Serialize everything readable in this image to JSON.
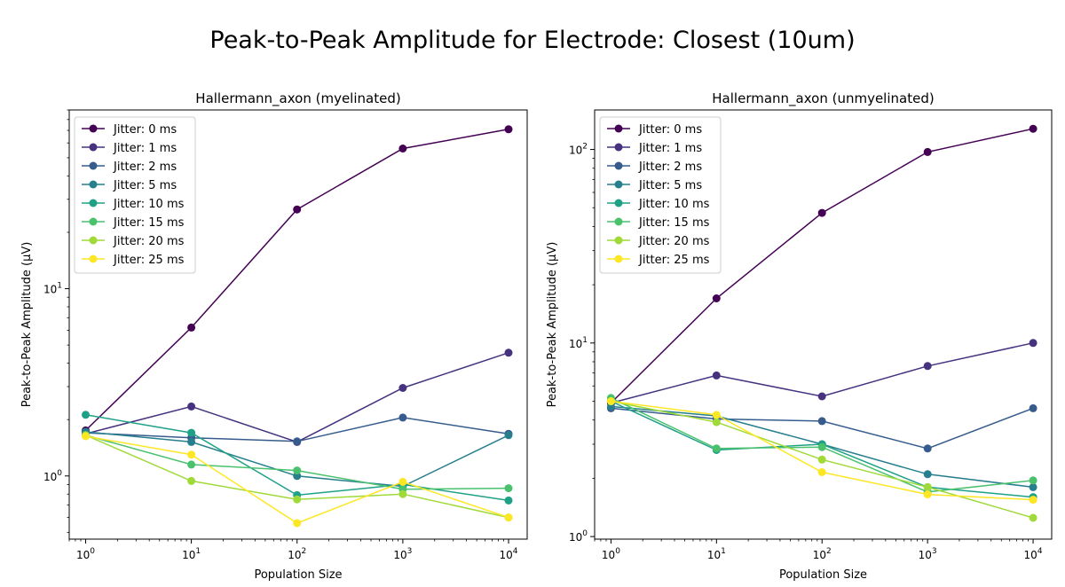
{
  "figure": {
    "suptitle": "Peak-to-Peak Amplitude for Electrode: Closest (10um)"
  },
  "chart_data": [
    {
      "type": "line",
      "title": "Hallermann_axon (myelinated)",
      "xlabel": "Population Size",
      "ylabel": "Peak-to-Peak Amplitude (μV)",
      "xscale": "log",
      "yscale": "log",
      "x": [
        1,
        10,
        100,
        1000,
        10000
      ],
      "xlim": [
        0.7,
        15000
      ],
      "ylim": [
        0.46,
        90
      ],
      "x_ticks": [
        {
          "value": 1,
          "base": "10",
          "exp": "0"
        },
        {
          "value": 10,
          "base": "10",
          "exp": "1"
        },
        {
          "value": 100,
          "base": "10",
          "exp": "2"
        },
        {
          "value": 1000,
          "base": "10",
          "exp": "3"
        },
        {
          "value": 10000,
          "base": "10",
          "exp": "4"
        }
      ],
      "y_ticks": [
        {
          "value": 1,
          "base": "10",
          "exp": "0"
        },
        {
          "value": 10,
          "base": "10",
          "exp": "1"
        }
      ],
      "legend_position": "upper left",
      "grid": false,
      "series": [
        {
          "name": "Jitter: 0 ms",
          "color": "#440154",
          "values": [
            1.75,
            6.2,
            26.5,
            56,
            71
          ]
        },
        {
          "name": "Jitter: 1 ms",
          "color": "#46327e",
          "values": [
            1.68,
            2.35,
            1.52,
            2.95,
            4.55
          ]
        },
        {
          "name": "Jitter: 2 ms",
          "color": "#365c8d",
          "values": [
            1.7,
            1.6,
            1.53,
            2.05,
            1.68
          ]
        },
        {
          "name": "Jitter: 5 ms",
          "color": "#277f8e",
          "values": [
            1.72,
            1.52,
            1.0,
            0.88,
            1.65
          ]
        },
        {
          "name": "Jitter: 10 ms",
          "color": "#1fa187",
          "values": [
            2.12,
            1.7,
            0.79,
            0.9,
            0.74
          ]
        },
        {
          "name": "Jitter: 15 ms",
          "color": "#4ac16d",
          "values": [
            1.65,
            1.15,
            1.07,
            0.85,
            0.86
          ]
        },
        {
          "name": "Jitter: 20 ms",
          "color": "#a0da39",
          "values": [
            1.65,
            0.94,
            0.75,
            0.8,
            0.6
          ]
        },
        {
          "name": "Jitter: 25 ms",
          "color": "#fde725",
          "values": [
            1.63,
            1.3,
            0.56,
            0.93,
            0.6
          ]
        }
      ]
    },
    {
      "type": "line",
      "title": "Hallermann_axon (unmyelinated)",
      "xlabel": "Population Size",
      "ylabel": "Peak-to-Peak Amplitude (μV)",
      "xscale": "log",
      "yscale": "log",
      "x": [
        1,
        10,
        100,
        1000,
        10000
      ],
      "xlim": [
        0.7,
        15000
      ],
      "ylim": [
        0.97,
        160
      ],
      "x_ticks": [
        {
          "value": 1,
          "base": "10",
          "exp": "0"
        },
        {
          "value": 10,
          "base": "10",
          "exp": "1"
        },
        {
          "value": 100,
          "base": "10",
          "exp": "2"
        },
        {
          "value": 1000,
          "base": "10",
          "exp": "3"
        },
        {
          "value": 10000,
          "base": "10",
          "exp": "4"
        }
      ],
      "y_ticks": [
        {
          "value": 1,
          "base": "10",
          "exp": "0"
        },
        {
          "value": 10,
          "base": "10",
          "exp": "1"
        },
        {
          "value": 100,
          "base": "10",
          "exp": "2"
        }
      ],
      "legend_position": "upper left",
      "grid": false,
      "series": [
        {
          "name": "Jitter: 0 ms",
          "color": "#440154",
          "values": [
            4.9,
            17,
            47,
            97,
            128
          ]
        },
        {
          "name": "Jitter: 1 ms",
          "color": "#46327e",
          "values": [
            4.9,
            6.8,
            5.3,
            7.6,
            10
          ]
        },
        {
          "name": "Jitter: 2 ms",
          "color": "#365c8d",
          "values": [
            4.6,
            4.05,
            3.95,
            2.85,
            4.6
          ]
        },
        {
          "name": "Jitter: 5 ms",
          "color": "#277f8e",
          "values": [
            4.7,
            4.2,
            3.0,
            2.1,
            1.8
          ]
        },
        {
          "name": "Jitter: 10 ms",
          "color": "#1fa187",
          "values": [
            5.0,
            2.8,
            3.0,
            1.8,
            1.6
          ]
        },
        {
          "name": "Jitter: 15 ms",
          "color": "#4ac16d",
          "values": [
            5.2,
            2.85,
            2.9,
            1.7,
            1.95
          ]
        },
        {
          "name": "Jitter: 20 ms",
          "color": "#a0da39",
          "values": [
            5.0,
            3.9,
            2.5,
            1.8,
            1.25
          ]
        },
        {
          "name": "Jitter: 25 ms",
          "color": "#fde725",
          "values": [
            5.0,
            4.25,
            2.15,
            1.65,
            1.55
          ]
        }
      ]
    }
  ]
}
